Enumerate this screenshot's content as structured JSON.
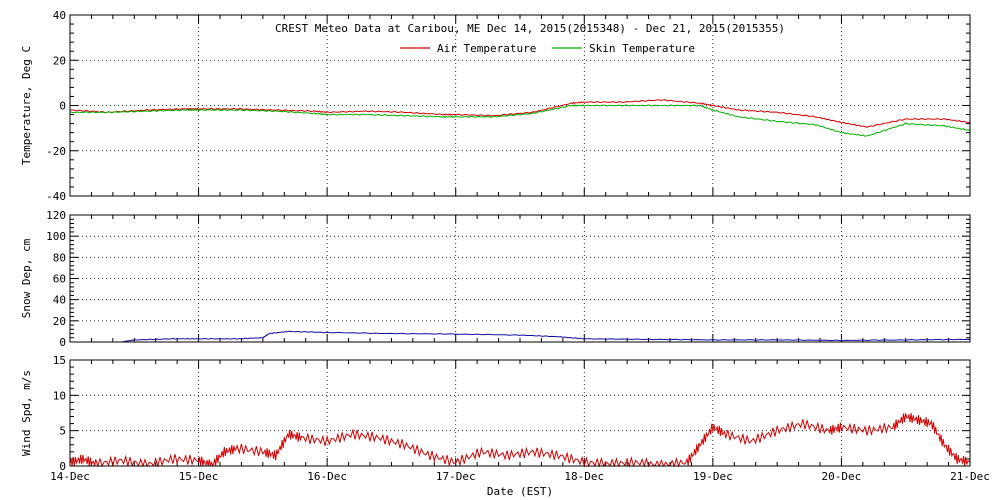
{
  "chart_data": [
    {
      "type": "line",
      "title": "CREST Meteo Data at Caribou, ME   Dec 14, 2015(2015348) - Dec 21, 2015(2015355)",
      "ylabel": "Temperature, Deg C",
      "ylim": [
        -40,
        40
      ],
      "yticks": [
        -40,
        -20,
        0,
        20,
        40
      ],
      "legend_position": "top-center",
      "grid": true,
      "series": [
        {
          "name": "Air Temperature",
          "color": "#d00000",
          "x": [
            0,
            0.3,
            0.6,
            0.9,
            1.0,
            1.3,
            1.6,
            1.9,
            2.0,
            2.3,
            2.6,
            2.9,
            3.0,
            3.3,
            3.6,
            3.9,
            4.0,
            4.3,
            4.6,
            4.9,
            5.0,
            5.2,
            5.5,
            5.8,
            6.0,
            6.2,
            6.5,
            6.8,
            7.0
          ],
          "y": [
            -2,
            -3,
            -2,
            -1.5,
            -1.5,
            -1.5,
            -2,
            -2.5,
            -3,
            -2.5,
            -3,
            -4,
            -4,
            -4.5,
            -3,
            1,
            1.5,
            1.5,
            2.5,
            1,
            0,
            -2,
            -3,
            -5,
            -7.5,
            -9.5,
            -6,
            -6,
            -7.5
          ]
        },
        {
          "name": "Skin Temperature",
          "color": "#00b000",
          "x": [
            0,
            0.3,
            0.6,
            0.9,
            1.0,
            1.3,
            1.6,
            1.9,
            2.0,
            2.3,
            2.6,
            2.9,
            3.0,
            3.3,
            3.6,
            3.9,
            4.0,
            4.3,
            4.6,
            4.9,
            5.0,
            5.2,
            5.5,
            5.8,
            6.0,
            6.2,
            6.5,
            6.8,
            7.0
          ],
          "y": [
            -3,
            -3,
            -2.5,
            -2,
            -2,
            -2,
            -2.5,
            -3.5,
            -4,
            -4,
            -4.5,
            -5,
            -5,
            -5,
            -3.5,
            0,
            0,
            0,
            0,
            0,
            -2,
            -5,
            -7,
            -8.5,
            -12,
            -13.5,
            -8,
            -9,
            -11
          ]
        }
      ]
    },
    {
      "type": "line",
      "ylabel": "Snow Dep, cm",
      "ylim": [
        0,
        120
      ],
      "yticks": [
        0,
        20,
        40,
        60,
        80,
        100,
        120
      ],
      "grid": true,
      "series": [
        {
          "name": "",
          "color": "#1010a0",
          "x": [
            0.4,
            0.5,
            0.8,
            1.0,
            1.3,
            1.5,
            1.55,
            1.7,
            2.0,
            2.5,
            3.0,
            3.5,
            3.8,
            4.0,
            4.5,
            5.0,
            5.5,
            6.0,
            6.5,
            7.0
          ],
          "y": [
            0,
            2,
            3,
            3,
            3,
            4,
            8,
            10,
            9,
            8,
            7.5,
            6.5,
            5,
            3,
            2.5,
            2,
            2,
            1.5,
            2,
            2.5
          ]
        }
      ]
    },
    {
      "type": "line",
      "xlabel": "Date (EST)",
      "ylabel": "Wind Spd, m/s",
      "ylim": [
        0,
        15
      ],
      "yticks": [
        0,
        5,
        10,
        15
      ],
      "x_categories": [
        "14-Dec",
        "15-Dec",
        "16-Dec",
        "17-Dec",
        "18-Dec",
        "19-Dec",
        "20-Dec",
        "21-Dec"
      ],
      "grid": true,
      "series": [
        {
          "name": "",
          "color": "#d00000",
          "x": [
            0,
            0.1,
            0.2,
            0.4,
            0.6,
            0.8,
            1.0,
            1.1,
            1.2,
            1.3,
            1.5,
            1.6,
            1.7,
            1.8,
            2.0,
            2.2,
            2.4,
            2.6,
            2.8,
            3.0,
            3.2,
            3.4,
            3.6,
            3.8,
            4.0,
            4.2,
            4.4,
            4.6,
            4.8,
            4.9,
            5.0,
            5.1,
            5.3,
            5.5,
            5.7,
            5.9,
            6.0,
            6.2,
            6.4,
            6.5,
            6.6,
            6.7,
            6.8,
            6.9,
            7.0
          ],
          "y": [
            0.5,
            1,
            0.3,
            0.8,
            0.2,
            1,
            0.8,
            0.1,
            2,
            2.5,
            2,
            1.5,
            4.5,
            4,
            3.5,
            4.5,
            4,
            3,
            1.5,
            0.5,
            2,
            1.5,
            2,
            1.5,
            0.5,
            0.3,
            0.5,
            0.1,
            0.5,
            3,
            5.5,
            4.5,
            3.5,
            5,
            6,
            5,
            5.5,
            5,
            5.5,
            7,
            6.5,
            6,
            3,
            1,
            0.5
          ]
        }
      ]
    }
  ]
}
